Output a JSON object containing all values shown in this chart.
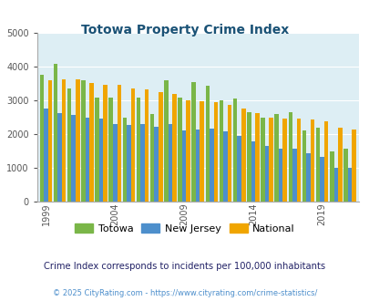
{
  "title": "Totowa Property Crime Index",
  "years": [
    1999,
    2000,
    2001,
    2002,
    2003,
    2004,
    2005,
    2006,
    2007,
    2008,
    2009,
    2010,
    2011,
    2012,
    2013,
    2014,
    2015,
    2016,
    2017,
    2018,
    2019,
    2020,
    2021
  ],
  "totowa": [
    3750,
    4100,
    3370,
    3600,
    3100,
    3100,
    2500,
    3100,
    2600,
    3600,
    3100,
    3550,
    3450,
    3000,
    3050,
    2650,
    2500,
    2600,
    2650,
    2100,
    2200,
    1500,
    1560
  ],
  "new_jersey": [
    2760,
    2640,
    2560,
    2490,
    2460,
    2300,
    2280,
    2290,
    2230,
    2310,
    2100,
    2150,
    2180,
    2080,
    1950,
    1780,
    1650,
    1560,
    1560,
    1430,
    1330,
    1000,
    1000
  ],
  "national": [
    3590,
    3640,
    3620,
    3510,
    3470,
    3460,
    3360,
    3330,
    3240,
    3200,
    3010,
    2980,
    2960,
    2870,
    2760,
    2630,
    2490,
    2460,
    2460,
    2450,
    2380,
    2200,
    2130
  ],
  "totowa_color": "#7ab648",
  "nj_color": "#4d8fcc",
  "national_color": "#f0a500",
  "bg_color": "#ddeef4",
  "ylim": [
    0,
    5000
  ],
  "yticks": [
    0,
    1000,
    2000,
    3000,
    4000,
    5000
  ],
  "xtick_years": [
    1999,
    2004,
    2009,
    2014,
    2019
  ],
  "subtitle": "Crime Index corresponds to incidents per 100,000 inhabitants",
  "footer": "© 2025 CityRating.com - https://www.cityrating.com/crime-statistics/",
  "title_color": "#1a5276",
  "subtitle_color": "#222266",
  "footer_color": "#4d8fcc"
}
